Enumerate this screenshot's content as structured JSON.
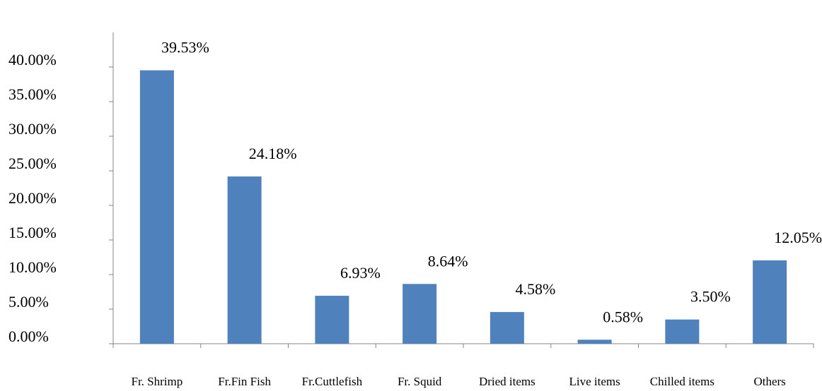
{
  "chart_data": {
    "type": "bar",
    "categories": [
      "Fr. Shrimp",
      "Fr.Fin Fish",
      "Fr.Cuttlefish",
      "Fr. Squid",
      "Dried items",
      "Live items",
      "Chilled items",
      "Others"
    ],
    "values": [
      39.53,
      24.18,
      6.93,
      8.64,
      4.58,
      0.58,
      3.5,
      12.05
    ],
    "value_labels": [
      "39.53%",
      "24.18%",
      "6.93%",
      "8.64%",
      "4.58%",
      "0.58%",
      "3.50%",
      "12.05%"
    ],
    "color": "#4f81bd",
    "ylim": [
      0,
      45
    ],
    "yticks": [
      {
        "value": 0,
        "label": "0.00%"
      },
      {
        "value": 5,
        "label": "5.00%"
      },
      {
        "value": 10,
        "label": "10.00%"
      },
      {
        "value": 15,
        "label": "15.00%"
      },
      {
        "value": 20,
        "label": "20.00%"
      },
      {
        "value": 25,
        "label": "25.00%"
      },
      {
        "value": 30,
        "label": "30.00%"
      },
      {
        "value": 35,
        "label": "35.00%"
      },
      {
        "value": 40,
        "label": "40.00%"
      }
    ],
    "grid": false
  }
}
